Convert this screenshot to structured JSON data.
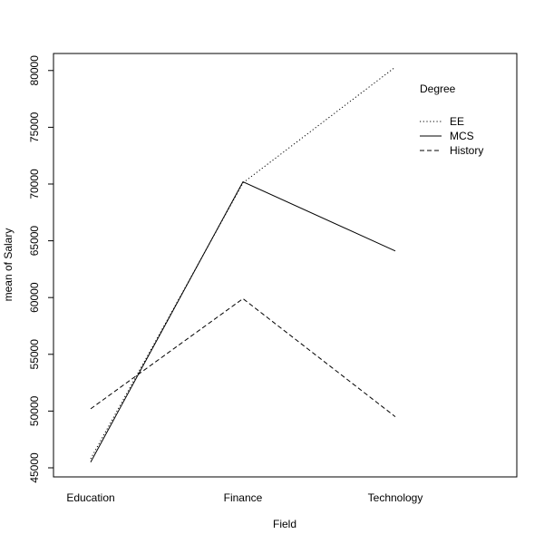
{
  "chart_data": {
    "type": "line",
    "title": "",
    "xlabel": "Field",
    "ylabel": "mean of  Salary",
    "categories": [
      "Education",
      "Finance",
      "Technology"
    ],
    "ylim": [
      44200,
      81500
    ],
    "yticks": [
      45000,
      50000,
      55000,
      60000,
      65000,
      70000,
      75000,
      80000
    ],
    "legend": {
      "title": "Degree",
      "position": "top-right",
      "entries": [
        "EE",
        "MCS",
        "History"
      ]
    },
    "series": [
      {
        "name": "EE",
        "style": "dotted",
        "values": [
          45800,
          70100,
          80300
        ]
      },
      {
        "name": "MCS",
        "style": "solid",
        "values": [
          45500,
          70200,
          64100
        ]
      },
      {
        "name": "History",
        "style": "dashed",
        "values": [
          50200,
          59900,
          49500
        ]
      }
    ],
    "grid": false
  }
}
